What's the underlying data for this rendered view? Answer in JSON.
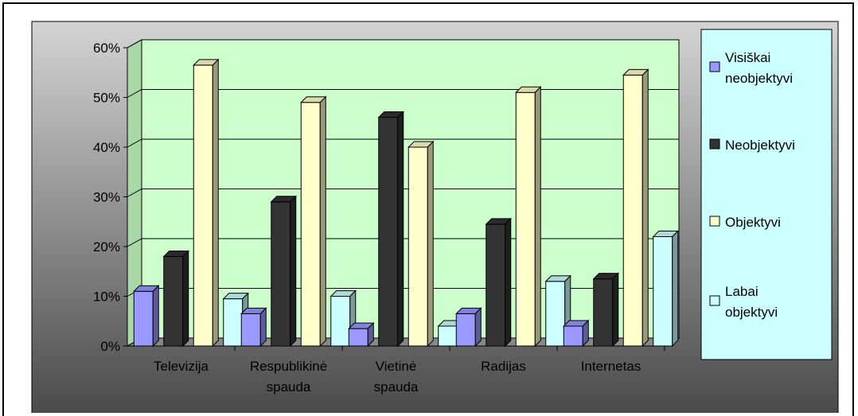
{
  "chart_data": {
    "type": "bar",
    "categories": [
      "Televizija",
      "Respublikinė spauda",
      "Vietinė spauda",
      "Radijas",
      "Internetas"
    ],
    "category_lines": [
      [
        "Televizija"
      ],
      [
        "Respublikinė",
        "spauda"
      ],
      [
        "Vietinė",
        "spauda"
      ],
      [
        "Radijas"
      ],
      [
        "Internetas"
      ]
    ],
    "series": [
      {
        "name": "Visiškai neobjektyvi",
        "name_lines": [
          "Visiškai",
          "neobjektyvi"
        ],
        "values": [
          11,
          6.5,
          3.5,
          6.5,
          4
        ],
        "color": "#9999ff"
      },
      {
        "name": "Neobjektyvi",
        "name_lines": [
          "Neobjektyvi"
        ],
        "values": [
          18,
          29,
          46,
          24.5,
          13.5
        ],
        "color": "#333333"
      },
      {
        "name": "Objektyvi",
        "name_lines": [
          "Objektyvi"
        ],
        "values": [
          56.5,
          49,
          40,
          51,
          54.5
        ],
        "color": "#ffffcc"
      },
      {
        "name": "Labai objektyvi",
        "name_lines": [
          "Labai",
          "objektyvi"
        ],
        "values": [
          9.5,
          10,
          4,
          13,
          22
        ],
        "color": "#ccffff"
      }
    ],
    "ylim": [
      0,
      60
    ],
    "yticks": [
      "0%",
      "10%",
      "20%",
      "30%",
      "40%",
      "50%",
      "60%"
    ],
    "grid": true,
    "legend": "right",
    "plot_wall_color": "#ccffcc",
    "chart_area_color": "#808080",
    "legend_bg_color": "#ccffff"
  }
}
